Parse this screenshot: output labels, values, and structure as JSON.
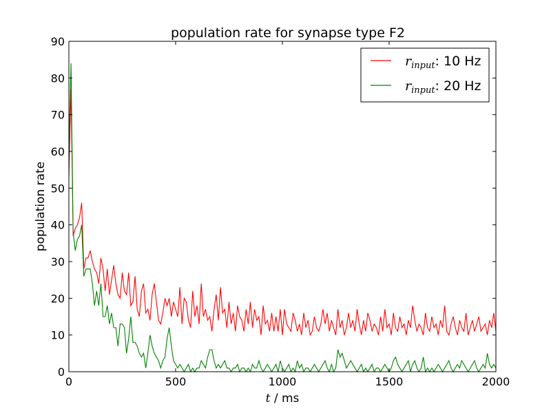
{
  "chart_data": {
    "type": "line",
    "title": "population rate for synapse type F2",
    "xlabel": {
      "var": "t",
      "rest": " / ms"
    },
    "ylabel": "population rate",
    "xlim": [
      0,
      2000
    ],
    "ylim": [
      0,
      90
    ],
    "xticks": [
      0,
      500,
      1000,
      1500,
      2000
    ],
    "yticks": [
      0,
      10,
      20,
      30,
      40,
      50,
      60,
      70,
      80,
      90
    ],
    "grid": false,
    "legend": {
      "placement": "top-right"
    },
    "series": [
      {
        "name": "r_input: 10 Hz",
        "legend_var": "r",
        "legend_sub": "input",
        "legend_rest": ": 10 Hz",
        "color": "#ff0000",
        "x": [
          0,
          10,
          20,
          30,
          40,
          50,
          60,
          70,
          80,
          90,
          100,
          110,
          120,
          130,
          140,
          150,
          160,
          170,
          180,
          190,
          200,
          210,
          220,
          230,
          240,
          250,
          260,
          270,
          280,
          290,
          300,
          310,
          320,
          330,
          340,
          350,
          360,
          370,
          380,
          390,
          400,
          410,
          420,
          430,
          440,
          450,
          460,
          470,
          480,
          490,
          500,
          510,
          520,
          530,
          540,
          550,
          560,
          570,
          580,
          590,
          600,
          610,
          620,
          630,
          640,
          650,
          660,
          670,
          680,
          690,
          700,
          710,
          720,
          730,
          740,
          750,
          760,
          770,
          780,
          790,
          800,
          810,
          820,
          830,
          840,
          850,
          860,
          870,
          880,
          890,
          900,
          910,
          920,
          930,
          940,
          950,
          960,
          970,
          980,
          990,
          1000,
          1010,
          1020,
          1030,
          1040,
          1050,
          1060,
          1070,
          1080,
          1090,
          1100,
          1110,
          1120,
          1130,
          1140,
          1150,
          1160,
          1170,
          1180,
          1190,
          1200,
          1210,
          1220,
          1230,
          1240,
          1250,
          1260,
          1270,
          1280,
          1290,
          1300,
          1310,
          1320,
          1330,
          1340,
          1350,
          1360,
          1370,
          1380,
          1390,
          1400,
          1410,
          1420,
          1430,
          1440,
          1450,
          1460,
          1470,
          1480,
          1490,
          1500,
          1510,
          1520,
          1530,
          1540,
          1550,
          1560,
          1570,
          1580,
          1590,
          1600,
          1610,
          1620,
          1630,
          1640,
          1650,
          1660,
          1670,
          1680,
          1690,
          1700,
          1710,
          1720,
          1730,
          1740,
          1750,
          1760,
          1770,
          1780,
          1790,
          1800,
          1810,
          1820,
          1830,
          1840,
          1850,
          1860,
          1870,
          1880,
          1890,
          1900,
          1910,
          1920,
          1930,
          1940,
          1950,
          1960,
          1970,
          1980,
          1990,
          2000
        ],
        "y": [
          53,
          77,
          37,
          39,
          40,
          42,
          46,
          28,
          31,
          31,
          33,
          30,
          28,
          27,
          24,
          31,
          28,
          22,
          28,
          21,
          25,
          29,
          24,
          21,
          20,
          27,
          22,
          21,
          27,
          18,
          19,
          26,
          17,
          15,
          22,
          24,
          16,
          17,
          14,
          21,
          24,
          19,
          14,
          13,
          16,
          20,
          18,
          20,
          15,
          19,
          17,
          15,
          23,
          13,
          20,
          19,
          14,
          12,
          22,
          15,
          18,
          13,
          24,
          15,
          17,
          14,
          15,
          11,
          17,
          21,
          14,
          23,
          16,
          17,
          12,
          19,
          13,
          16,
          11,
          18,
          15,
          14,
          11,
          17,
          13,
          19,
          12,
          17,
          14,
          15,
          10,
          18,
          13,
          14,
          11,
          16,
          11,
          15,
          11,
          17,
          10,
          17,
          13,
          12,
          11,
          16,
          14,
          11,
          13,
          10,
          16,
          12,
          14,
          10,
          11,
          15,
          12,
          11,
          13,
          17,
          13,
          16,
          11,
          14,
          12,
          10,
          17,
          12,
          14,
          10,
          12,
          16,
          12,
          14,
          11,
          17,
          13,
          10,
          14,
          11,
          16,
          14,
          11,
          13,
          12,
          10,
          15,
          11,
          17,
          12,
          13,
          10,
          16,
          12,
          11,
          15,
          12,
          13,
          10,
          14,
          12,
          18,
          14,
          11,
          13,
          12,
          10,
          16,
          12,
          11,
          15,
          12,
          13,
          10,
          14,
          12,
          18,
          11,
          10,
          13,
          15,
          12,
          10,
          14,
          12,
          11,
          16,
          10,
          12,
          14,
          11,
          13,
          15,
          11,
          12,
          13,
          10,
          14,
          12,
          16,
          11
        ]
      },
      {
        "name": "r_input: 20 Hz",
        "legend_var": "r",
        "legend_sub": "input",
        "legend_rest": ": 20 Hz",
        "color": "#008000",
        "x": [
          0,
          10,
          20,
          30,
          40,
          50,
          60,
          70,
          80,
          90,
          100,
          110,
          120,
          130,
          140,
          150,
          160,
          170,
          180,
          190,
          200,
          210,
          220,
          230,
          240,
          250,
          260,
          270,
          280,
          290,
          300,
          310,
          320,
          330,
          340,
          350,
          360,
          370,
          380,
          390,
          400,
          410,
          420,
          430,
          440,
          450,
          460,
          470,
          480,
          490,
          500,
          510,
          520,
          530,
          540,
          550,
          560,
          570,
          580,
          590,
          600,
          610,
          620,
          630,
          640,
          650,
          660,
          670,
          680,
          690,
          700,
          710,
          720,
          730,
          740,
          750,
          760,
          770,
          780,
          790,
          800,
          810,
          820,
          830,
          840,
          850,
          860,
          870,
          880,
          890,
          900,
          910,
          920,
          930,
          940,
          950,
          960,
          970,
          980,
          990,
          1000,
          1010,
          1020,
          1030,
          1040,
          1050,
          1060,
          1070,
          1080,
          1090,
          1100,
          1110,
          1120,
          1130,
          1140,
          1150,
          1160,
          1170,
          1180,
          1190,
          1200,
          1210,
          1220,
          1230,
          1240,
          1250,
          1260,
          1270,
          1280,
          1290,
          1300,
          1310,
          1320,
          1330,
          1340,
          1350,
          1360,
          1370,
          1380,
          1390,
          1400,
          1410,
          1420,
          1430,
          1440,
          1450,
          1460,
          1470,
          1480,
          1490,
          1500,
          1510,
          1520,
          1530,
          1540,
          1550,
          1560,
          1570,
          1580,
          1590,
          1600,
          1610,
          1620,
          1630,
          1640,
          1650,
          1660,
          1670,
          1680,
          1690,
          1700,
          1710,
          1720,
          1730,
          1740,
          1750,
          1760,
          1770,
          1780,
          1790,
          1800,
          1810,
          1820,
          1830,
          1840,
          1850,
          1860,
          1870,
          1880,
          1890,
          1900,
          1910,
          1920,
          1930,
          1940,
          1950,
          1960,
          1970,
          1980,
          1990,
          2000
        ],
        "y": [
          60,
          84,
          38,
          33,
          36,
          37,
          40,
          26,
          28,
          28,
          28,
          24,
          18,
          22,
          18,
          24,
          15,
          15,
          18,
          13,
          16,
          12,
          12,
          7,
          13,
          13,
          12,
          5,
          9,
          15,
          8,
          8,
          7,
          5,
          4,
          5,
          1,
          5,
          10,
          7,
          5,
          4,
          3,
          1,
          3,
          4,
          9,
          12,
          7,
          3,
          2,
          1,
          2,
          1,
          0,
          1,
          2,
          0,
          1,
          0,
          1,
          1,
          3,
          2,
          1,
          4,
          6,
          6,
          3,
          1,
          2,
          1,
          2,
          3,
          1,
          1,
          0,
          1,
          1,
          2,
          0,
          1,
          1,
          0,
          1,
          0,
          2,
          1,
          1,
          3,
          1,
          0,
          1,
          2,
          1,
          0,
          1,
          2,
          0,
          3,
          1,
          0,
          1,
          2,
          0,
          1,
          0,
          3,
          1,
          2,
          0,
          1,
          1,
          0,
          1,
          2,
          1,
          0,
          1,
          2,
          3,
          1,
          0,
          2,
          0,
          1,
          6,
          4,
          5,
          3,
          1,
          2,
          3,
          2,
          1,
          0,
          1,
          2,
          0,
          1,
          0,
          1,
          2,
          0,
          1,
          1,
          0,
          1,
          2,
          1,
          0,
          1,
          3,
          4,
          2,
          1,
          0,
          1,
          2,
          3,
          0,
          2,
          3,
          1,
          0,
          1,
          4,
          0,
          1,
          0,
          1,
          0,
          1,
          2,
          1,
          0,
          1,
          2,
          3,
          1,
          0,
          1,
          2,
          1,
          3,
          2,
          1,
          0,
          1,
          2,
          3,
          1,
          0,
          1,
          2,
          1,
          5,
          2,
          1,
          2,
          1
        ]
      }
    ]
  }
}
